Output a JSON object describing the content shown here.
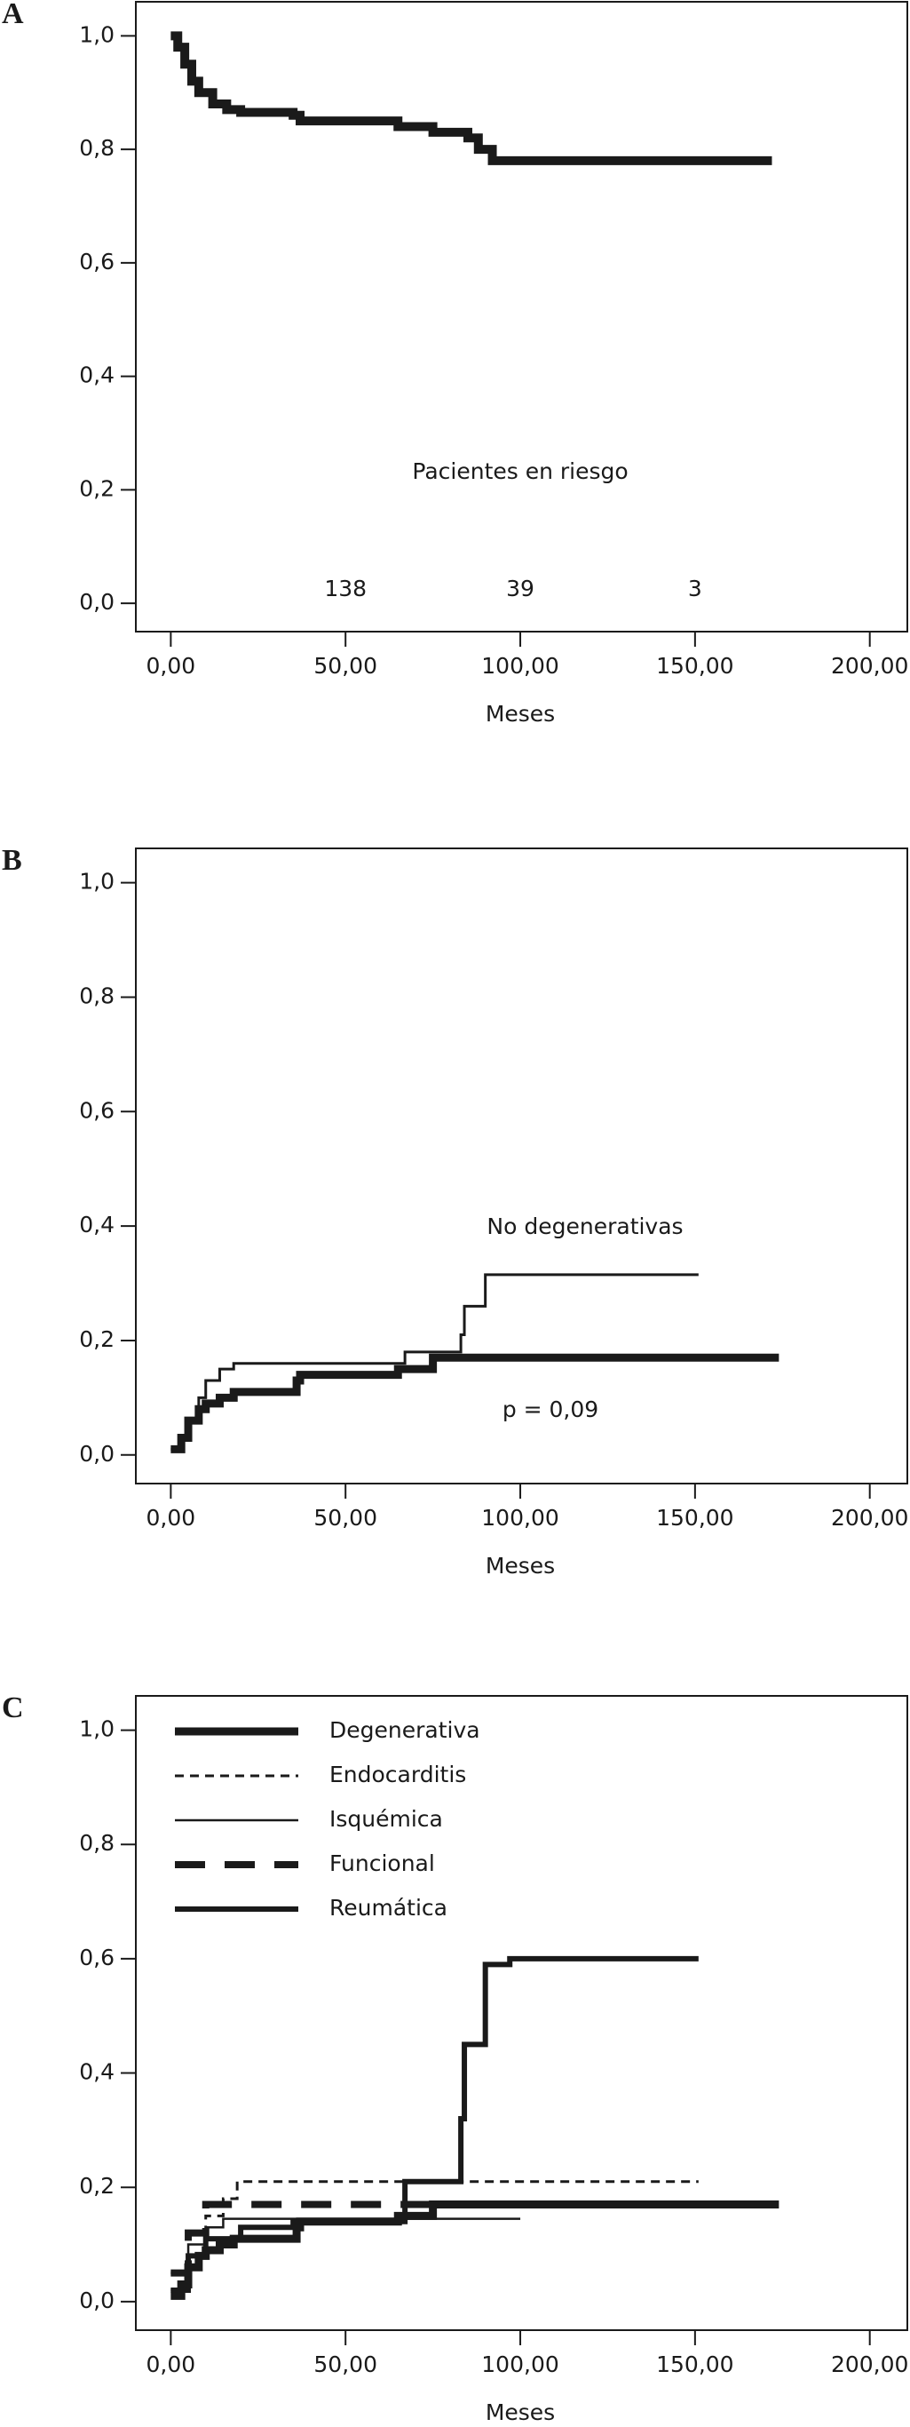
{
  "chart_data": [
    {
      "type": "step",
      "label": "A",
      "xlabel": "Meses",
      "xlim": [
        -10,
        211
      ],
      "ylim": [
        -0.05,
        1.06
      ],
      "xticks": [
        {
          "value": 0,
          "label": "0,00"
        },
        {
          "value": 50,
          "label": "50,00"
        },
        {
          "value": 100,
          "label": "100,00"
        },
        {
          "value": 150,
          "label": "150,00"
        },
        {
          "value": 200,
          "label": "200,00"
        }
      ],
      "yticks": [
        {
          "value": 0,
          "label": "0,0"
        },
        {
          "value": 0.2,
          "label": "0,2"
        },
        {
          "value": 0.4,
          "label": "0,4"
        },
        {
          "value": 0.6,
          "label": "0,6"
        },
        {
          "value": 0.8,
          "label": "0,8"
        },
        {
          "value": 1,
          "label": "1,0"
        }
      ],
      "series": [
        {
          "color": "#1a1a1a",
          "linewidth": 10,
          "linestyle": "solid",
          "x": [
            0,
            2,
            4,
            6,
            8,
            12,
            16,
            20,
            35,
            37,
            60,
            65,
            75,
            85,
            88,
            92,
            172
          ],
          "y": [
            1.0,
            0.98,
            0.95,
            0.92,
            0.9,
            0.88,
            0.87,
            0.865,
            0.86,
            0.85,
            0.85,
            0.84,
            0.83,
            0.82,
            0.8,
            0.78,
            0.78
          ]
        }
      ],
      "at_risk_title": "Pacientes en riesgo",
      "at_risk": {
        "x": [
          50,
          100,
          150
        ],
        "values": [
          138,
          39,
          3
        ]
      }
    },
    {
      "type": "step",
      "label": "B",
      "xlabel": "Meses",
      "xlim": [
        -10,
        211
      ],
      "ylim": [
        -0.05,
        1.06
      ],
      "xticks": [
        {
          "value": 0,
          "label": "0,00"
        },
        {
          "value": 50,
          "label": "50,00"
        },
        {
          "value": 100,
          "label": "100,00"
        },
        {
          "value": 150,
          "label": "150,00"
        },
        {
          "value": 200,
          "label": "200,00"
        }
      ],
      "yticks": [
        {
          "value": 0,
          "label": "0,0"
        },
        {
          "value": 0.2,
          "label": "0,2"
        },
        {
          "value": 0.4,
          "label": "0,4"
        },
        {
          "value": 0.6,
          "label": "0,6"
        },
        {
          "value": 0.8,
          "label": "0,8"
        },
        {
          "value": 1,
          "label": "1,0"
        }
      ],
      "series": [
        {
          "color": "#1a1a1a",
          "linewidth": 3,
          "linestyle": "solid",
          "x": [
            0,
            3,
            5,
            8,
            10,
            14,
            18,
            65,
            67,
            82,
            83,
            84,
            89,
            90,
            151
          ],
          "y": [
            0.01,
            0.03,
            0.06,
            0.1,
            0.13,
            0.15,
            0.16,
            0.16,
            0.18,
            0.18,
            0.21,
            0.26,
            0.26,
            0.315,
            0.315
          ]
        },
        {
          "color": "#1a1a1a",
          "linewidth": 9,
          "linestyle": "solid",
          "x": [
            0,
            3,
            5,
            8,
            10,
            14,
            18,
            35,
            36,
            37,
            60,
            65,
            75,
            174
          ],
          "y": [
            0.01,
            0.03,
            0.06,
            0.08,
            0.09,
            0.1,
            0.11,
            0.11,
            0.13,
            0.14,
            0.14,
            0.15,
            0.17,
            0.17
          ]
        }
      ],
      "annotations": [
        "No degenerativas",
        "p = 0,09"
      ]
    },
    {
      "type": "step",
      "label": "C",
      "xlabel": "Meses",
      "xlim": [
        -10,
        211
      ],
      "ylim": [
        -0.05,
        1.06
      ],
      "xticks": [
        {
          "value": 0,
          "label": "0,00"
        },
        {
          "value": 50,
          "label": "50,00"
        },
        {
          "value": 100,
          "label": "100,00"
        },
        {
          "value": 150,
          "label": "150,00"
        },
        {
          "value": 200,
          "label": "200,00"
        }
      ],
      "yticks": [
        {
          "value": 0,
          "label": "0,0"
        },
        {
          "value": 0.2,
          "label": "0,2"
        },
        {
          "value": 0.4,
          "label": "0,4"
        },
        {
          "value": 0.6,
          "label": "0,6"
        },
        {
          "value": 0.8,
          "label": "0,8"
        },
        {
          "value": 1,
          "label": "1,0"
        }
      ],
      "legend": "top-left",
      "series": [
        {
          "name": "Degenerativa",
          "color": "#1a1a1a",
          "linewidth": 9,
          "linestyle": "solid",
          "x": [
            0,
            3,
            5,
            8,
            10,
            14,
            18,
            35,
            36,
            37,
            60,
            65,
            75,
            174
          ],
          "y": [
            0.01,
            0.03,
            0.06,
            0.08,
            0.09,
            0.1,
            0.11,
            0.11,
            0.13,
            0.14,
            0.14,
            0.15,
            0.17,
            0.17
          ]
        },
        {
          "name": "Endocarditis",
          "color": "#1a1a1a",
          "linewidth": 3,
          "linestyle": "dashed",
          "x": [
            0,
            5,
            10,
            15,
            19,
            151
          ],
          "y": [
            0.02,
            0.08,
            0.15,
            0.18,
            0.21,
            0.21
          ]
        },
        {
          "name": "Isquémica",
          "color": "#1a1a1a",
          "linewidth": 2.5,
          "linestyle": "solid",
          "x": [
            0,
            5,
            10,
            15,
            100
          ],
          "y": [
            0.05,
            0.1,
            0.13,
            0.145,
            0.145
          ]
        },
        {
          "name": "Funcional",
          "color": "#1a1a1a",
          "linewidth": 8,
          "linestyle": "longdash",
          "x": [
            0,
            5,
            10,
            75
          ],
          "y": [
            0.05,
            0.12,
            0.17,
            0.17
          ]
        },
        {
          "name": "Reumática",
          "color": "#1a1a1a",
          "linewidth": 6,
          "linestyle": "solid",
          "x": [
            0,
            5,
            10,
            20,
            35,
            66,
            67,
            82,
            83,
            84,
            89,
            90,
            97,
            151
          ],
          "y": [
            0.02,
            0.08,
            0.11,
            0.13,
            0.14,
            0.14,
            0.21,
            0.21,
            0.32,
            0.45,
            0.45,
            0.59,
            0.6,
            0.6
          ]
        }
      ]
    }
  ]
}
